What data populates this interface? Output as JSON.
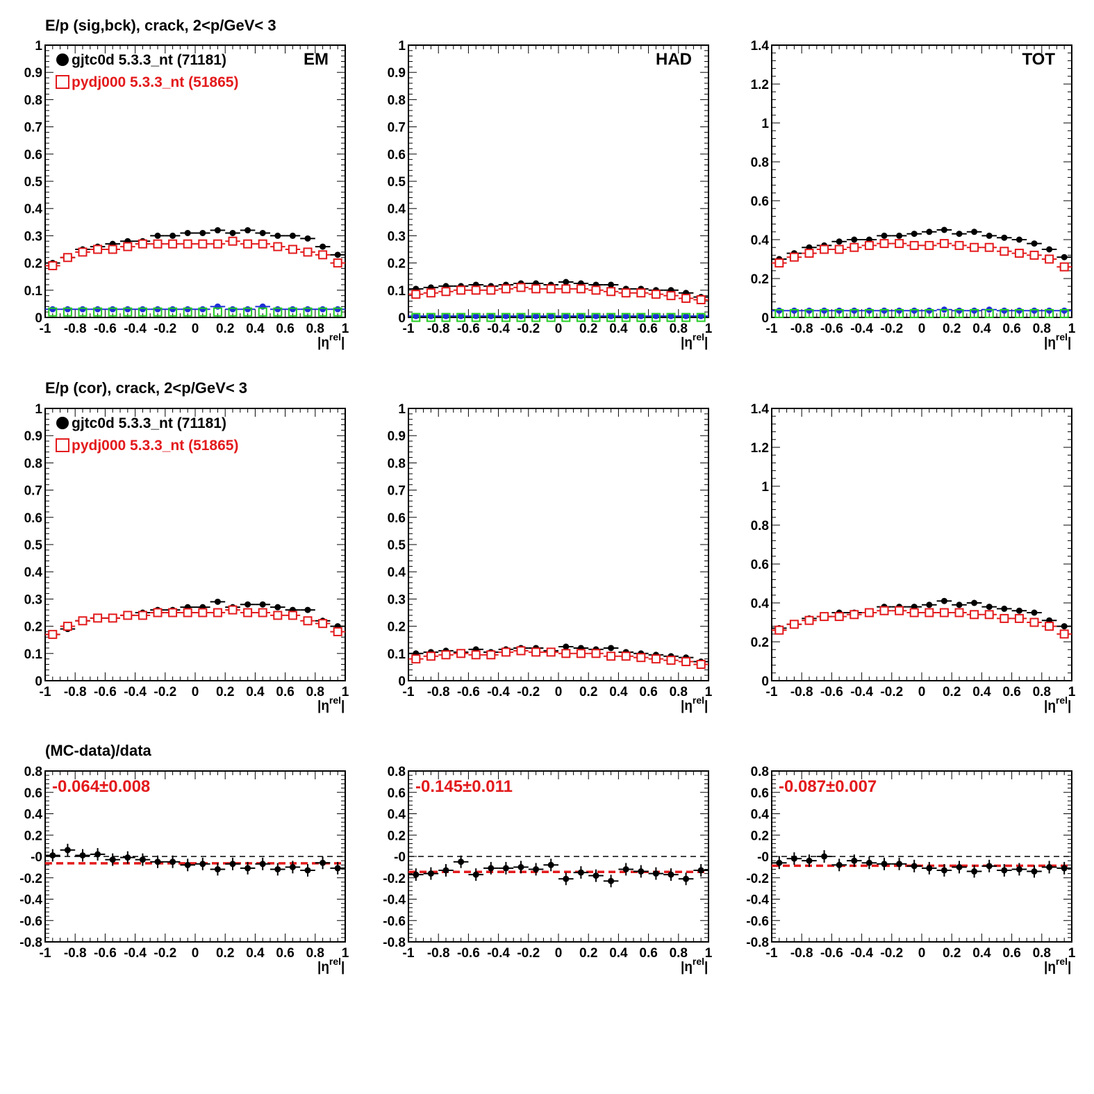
{
  "row_titles": [
    "E/p (sig,bck), crack,  2<p/GeV< 3",
    "E/p (cor), crack,  2<p/GeV< 3",
    "(MC-data)/data"
  ],
  "panel_labels": [
    "EM",
    "HAD",
    "TOT"
  ],
  "legend": {
    "data_label": "gjtc0d 5.3.3_nt (71181)",
    "mc_label": "pydj000 5.3.3_nt (51865)"
  },
  "xlabel_eta": "|η",
  "xlabel_sup": "rel",
  "xlabel_close": "|",
  "colors": {
    "data": "#000000",
    "mc": "#e31a1c",
    "bck_data": "#1f2fd6",
    "bck_mc": "#22cc22",
    "fit": "#e31a1c"
  },
  "chart_data": [
    {
      "type": "scatter",
      "panel": "EM",
      "row": 1,
      "x": [
        -0.95,
        -0.85,
        -0.75,
        -0.65,
        -0.55,
        -0.45,
        -0.35,
        -0.25,
        -0.15,
        -0.05,
        0.05,
        0.15,
        0.25,
        0.35,
        0.45,
        0.55,
        0.65,
        0.75,
        0.85,
        0.95
      ],
      "series": [
        {
          "name": "gjtc0d 5.3.3_nt (71181)",
          "values": [
            0.2,
            0.22,
            0.25,
            0.26,
            0.27,
            0.28,
            0.28,
            0.3,
            0.3,
            0.31,
            0.31,
            0.32,
            0.31,
            0.32,
            0.31,
            0.3,
            0.3,
            0.29,
            0.26,
            0.23
          ]
        },
        {
          "name": "pydj000 5.3.3_nt (51865)",
          "values": [
            0.19,
            0.22,
            0.24,
            0.25,
            0.25,
            0.26,
            0.27,
            0.27,
            0.27,
            0.27,
            0.27,
            0.27,
            0.28,
            0.27,
            0.27,
            0.26,
            0.25,
            0.24,
            0.23,
            0.2
          ]
        },
        {
          "values": [
            0.03,
            0.03,
            0.03,
            0.03,
            0.03,
            0.03,
            0.03,
            0.03,
            0.03,
            0.03,
            0.03,
            0.04,
            0.03,
            0.03,
            0.04,
            0.03,
            0.03,
            0.03,
            0.03,
            0.03
          ]
        },
        {
          "values": [
            0.02,
            0.02,
            0.02,
            0.02,
            0.02,
            0.02,
            0.02,
            0.02,
            0.02,
            0.02,
            0.02,
            0.02,
            0.02,
            0.02,
            0.02,
            0.02,
            0.02,
            0.02,
            0.02,
            0.02
          ]
        }
      ],
      "xlim": [
        -1,
        1
      ],
      "ylim": [
        0,
        1
      ],
      "xticks": [
        "-1",
        "-0.8",
        "-0.6",
        "-0.4",
        "-0.2",
        "0",
        "0.2",
        "0.4",
        "0.6",
        "0.8",
        "1"
      ],
      "yticks": [
        "0",
        "0.1",
        "0.2",
        "0.3",
        "0.4",
        "0.5",
        "0.6",
        "0.7",
        "0.8",
        "0.9",
        "1"
      ]
    },
    {
      "type": "scatter",
      "panel": "HAD",
      "row": 1,
      "x": [
        -0.95,
        -0.85,
        -0.75,
        -0.65,
        -0.55,
        -0.45,
        -0.35,
        -0.25,
        -0.15,
        -0.05,
        0.05,
        0.15,
        0.25,
        0.35,
        0.45,
        0.55,
        0.65,
        0.75,
        0.85,
        0.95
      ],
      "series": [
        {
          "name": "gjtc0d 5.3.3_nt (71181)",
          "values": [
            0.105,
            0.11,
            0.115,
            0.115,
            0.12,
            0.115,
            0.12,
            0.125,
            0.125,
            0.12,
            0.13,
            0.125,
            0.12,
            0.12,
            0.105,
            0.105,
            0.1,
            0.1,
            0.09,
            0.075
          ]
        },
        {
          "name": "pydj000 5.3.3_nt (51865)",
          "values": [
            0.085,
            0.09,
            0.095,
            0.1,
            0.1,
            0.1,
            0.105,
            0.11,
            0.105,
            0.105,
            0.105,
            0.105,
            0.1,
            0.095,
            0.09,
            0.09,
            0.085,
            0.08,
            0.07,
            0.065
          ]
        },
        {
          "values": [
            0.005,
            0.005,
            0.005,
            0.005,
            0.005,
            0.005,
            0.005,
            0.005,
            0.005,
            0.005,
            0.005,
            0.005,
            0.005,
            0.005,
            0.005,
            0.005,
            0.005,
            0.005,
            0.005,
            0.005
          ]
        },
        {
          "values": [
            0.0,
            0.0,
            0.0,
            0.0,
            0.0,
            0.0,
            0.0,
            0.0,
            0.0,
            0.0,
            0.0,
            0.0,
            0.0,
            0.0,
            0.0,
            0.0,
            0.0,
            0.0,
            0.0,
            0.0
          ]
        }
      ],
      "xlim": [
        -1,
        1
      ],
      "ylim": [
        0,
        1
      ],
      "xticks": [
        "-1",
        "-0.8",
        "-0.6",
        "-0.4",
        "-0.2",
        "0",
        "0.2",
        "0.4",
        "0.6",
        "0.8",
        "1"
      ],
      "yticks": [
        "0",
        "0.1",
        "0.2",
        "0.3",
        "0.4",
        "0.5",
        "0.6",
        "0.7",
        "0.8",
        "0.9",
        "1"
      ]
    },
    {
      "type": "scatter",
      "panel": "TOT",
      "row": 1,
      "x": [
        -0.95,
        -0.85,
        -0.75,
        -0.65,
        -0.55,
        -0.45,
        -0.35,
        -0.25,
        -0.15,
        -0.05,
        0.05,
        0.15,
        0.25,
        0.35,
        0.45,
        0.55,
        0.65,
        0.75,
        0.85,
        0.95
      ],
      "series": [
        {
          "name": "gjtc0d 5.3.3_nt (71181)",
          "values": [
            0.3,
            0.33,
            0.36,
            0.37,
            0.39,
            0.4,
            0.4,
            0.42,
            0.42,
            0.43,
            0.44,
            0.45,
            0.43,
            0.44,
            0.42,
            0.41,
            0.4,
            0.38,
            0.35,
            0.31
          ]
        },
        {
          "name": "pydj000 5.3.3_nt (51865)",
          "values": [
            0.28,
            0.31,
            0.33,
            0.35,
            0.35,
            0.36,
            0.37,
            0.38,
            0.38,
            0.37,
            0.37,
            0.38,
            0.37,
            0.36,
            0.36,
            0.34,
            0.33,
            0.32,
            0.3,
            0.26
          ]
        },
        {
          "values": [
            0.035,
            0.035,
            0.035,
            0.035,
            0.035,
            0.035,
            0.035,
            0.035,
            0.035,
            0.035,
            0.035,
            0.04,
            0.035,
            0.035,
            0.04,
            0.035,
            0.035,
            0.035,
            0.035,
            0.035
          ]
        },
        {
          "values": [
            0.02,
            0.02,
            0.02,
            0.02,
            0.02,
            0.02,
            0.02,
            0.02,
            0.02,
            0.02,
            0.02,
            0.02,
            0.02,
            0.02,
            0.02,
            0.02,
            0.02,
            0.02,
            0.02,
            0.02
          ]
        }
      ],
      "xlim": [
        -1,
        1
      ],
      "ylim": [
        0,
        1.4
      ],
      "xticks": [
        "-1",
        "-0.8",
        "-0.6",
        "-0.4",
        "-0.2",
        "0",
        "0.2",
        "0.4",
        "0.6",
        "0.8",
        "1"
      ],
      "yticks": [
        "0",
        "0.2",
        "0.4",
        "0.6",
        "0.8",
        "1",
        "1.2",
        "1.4"
      ]
    },
    {
      "type": "scatter",
      "panel": "EM",
      "row": 2,
      "x": [
        -0.95,
        -0.85,
        -0.75,
        -0.65,
        -0.55,
        -0.45,
        -0.35,
        -0.25,
        -0.15,
        -0.05,
        0.05,
        0.15,
        0.25,
        0.35,
        0.45,
        0.55,
        0.65,
        0.75,
        0.85,
        0.95
      ],
      "series": [
        {
          "name": "gjtc0d 5.3.3_nt (71181)",
          "values": [
            0.17,
            0.19,
            0.22,
            0.23,
            0.23,
            0.24,
            0.25,
            0.26,
            0.26,
            0.27,
            0.27,
            0.29,
            0.27,
            0.28,
            0.28,
            0.27,
            0.26,
            0.26,
            0.22,
            0.2
          ]
        },
        {
          "name": "pydj000 5.3.3_nt (51865)",
          "values": [
            0.17,
            0.2,
            0.22,
            0.23,
            0.23,
            0.24,
            0.24,
            0.25,
            0.25,
            0.25,
            0.25,
            0.25,
            0.26,
            0.25,
            0.25,
            0.24,
            0.24,
            0.22,
            0.21,
            0.18
          ]
        }
      ],
      "xlim": [
        -1,
        1
      ],
      "ylim": [
        0,
        1
      ],
      "xticks": [
        "-1",
        "-0.8",
        "-0.6",
        "-0.4",
        "-0.2",
        "0",
        "0.2",
        "0.4",
        "0.6",
        "0.8",
        "1"
      ],
      "yticks": [
        "0",
        "0.1",
        "0.2",
        "0.3",
        "0.4",
        "0.5",
        "0.6",
        "0.7",
        "0.8",
        "0.9",
        "1"
      ]
    },
    {
      "type": "scatter",
      "panel": "HAD",
      "row": 2,
      "x": [
        -0.95,
        -0.85,
        -0.75,
        -0.65,
        -0.55,
        -0.45,
        -0.35,
        -0.25,
        -0.15,
        -0.05,
        0.05,
        0.15,
        0.25,
        0.35,
        0.45,
        0.55,
        0.65,
        0.75,
        0.85,
        0.95
      ],
      "series": [
        {
          "name": "gjtc0d 5.3.3_nt (71181)",
          "values": [
            0.1,
            0.105,
            0.11,
            0.105,
            0.115,
            0.105,
            0.115,
            0.12,
            0.12,
            0.11,
            0.125,
            0.12,
            0.115,
            0.12,
            0.105,
            0.1,
            0.095,
            0.09,
            0.085,
            0.07
          ]
        },
        {
          "name": "pydj000 5.3.3_nt (51865)",
          "values": [
            0.08,
            0.09,
            0.095,
            0.1,
            0.095,
            0.095,
            0.105,
            0.11,
            0.105,
            0.105,
            0.1,
            0.1,
            0.1,
            0.09,
            0.09,
            0.085,
            0.08,
            0.075,
            0.07,
            0.06
          ]
        }
      ],
      "xlim": [
        -1,
        1
      ],
      "ylim": [
        0,
        1
      ],
      "xticks": [
        "-1",
        "-0.8",
        "-0.6",
        "-0.4",
        "-0.2",
        "0",
        "0.2",
        "0.4",
        "0.6",
        "0.8",
        "1"
      ],
      "yticks": [
        "0",
        "0.1",
        "0.2",
        "0.3",
        "0.4",
        "0.5",
        "0.6",
        "0.7",
        "0.8",
        "0.9",
        "1"
      ]
    },
    {
      "type": "scatter",
      "panel": "TOT",
      "row": 2,
      "x": [
        -0.95,
        -0.85,
        -0.75,
        -0.65,
        -0.55,
        -0.45,
        -0.35,
        -0.25,
        -0.15,
        -0.05,
        0.05,
        0.15,
        0.25,
        0.35,
        0.45,
        0.55,
        0.65,
        0.75,
        0.85,
        0.95
      ],
      "series": [
        {
          "name": "gjtc0d 5.3.3_nt (71181)",
          "values": [
            0.27,
            0.29,
            0.32,
            0.33,
            0.35,
            0.35,
            0.35,
            0.38,
            0.38,
            0.38,
            0.39,
            0.41,
            0.39,
            0.4,
            0.38,
            0.37,
            0.36,
            0.35,
            0.31,
            0.28
          ]
        },
        {
          "name": "pydj000 5.3.3_nt (51865)",
          "values": [
            0.26,
            0.29,
            0.31,
            0.33,
            0.33,
            0.34,
            0.35,
            0.36,
            0.36,
            0.35,
            0.35,
            0.35,
            0.35,
            0.34,
            0.34,
            0.32,
            0.32,
            0.3,
            0.28,
            0.24
          ]
        }
      ],
      "xlim": [
        -1,
        1
      ],
      "ylim": [
        0,
        1.4
      ],
      "xticks": [
        "-1",
        "-0.8",
        "-0.6",
        "-0.4",
        "-0.2",
        "0",
        "0.2",
        "0.4",
        "0.6",
        "0.8",
        "1"
      ],
      "yticks": [
        "0",
        "0.2",
        "0.4",
        "0.6",
        "0.8",
        "1",
        "1.2",
        "1.4"
      ]
    },
    {
      "type": "scatter",
      "panel": "EM",
      "row": 3,
      "x": [
        -0.95,
        -0.85,
        -0.75,
        -0.65,
        -0.55,
        -0.45,
        -0.35,
        -0.25,
        -0.15,
        -0.05,
        0.05,
        0.15,
        0.25,
        0.35,
        0.45,
        0.55,
        0.65,
        0.75,
        0.85,
        0.95
      ],
      "series": [
        {
          "values": [
            0.01,
            0.06,
            0.01,
            0.02,
            -0.03,
            -0.01,
            -0.03,
            -0.05,
            -0.05,
            -0.08,
            -0.07,
            -0.12,
            -0.07,
            -0.11,
            -0.07,
            -0.12,
            -0.1,
            -0.13,
            -0.06,
            -0.11
          ]
        }
      ],
      "fit": {
        "value": -0.064,
        "label": "-0.064±0.008"
      },
      "xlim": [
        -1,
        1
      ],
      "ylim": [
        -0.8,
        0.8
      ],
      "xticks": [
        "-1",
        "-0.8",
        "-0.6",
        "-0.4",
        "-0.2",
        "0",
        "0.2",
        "0.4",
        "0.6",
        "0.8",
        "1"
      ],
      "yticks": [
        "-0.8",
        "-0.6",
        "-0.4",
        "-0.2",
        "-0",
        "0.2",
        "0.4",
        "0.6",
        "0.8"
      ]
    },
    {
      "type": "scatter",
      "panel": "HAD",
      "row": 3,
      "x": [
        -0.95,
        -0.85,
        -0.75,
        -0.65,
        -0.55,
        -0.45,
        -0.35,
        -0.25,
        -0.15,
        -0.05,
        0.05,
        0.15,
        0.25,
        0.35,
        0.45,
        0.55,
        0.65,
        0.75,
        0.85,
        0.95
      ],
      "series": [
        {
          "values": [
            -0.17,
            -0.16,
            -0.13,
            -0.05,
            -0.17,
            -0.11,
            -0.11,
            -0.1,
            -0.12,
            -0.08,
            -0.21,
            -0.15,
            -0.18,
            -0.23,
            -0.12,
            -0.14,
            -0.16,
            -0.17,
            -0.21,
            -0.13
          ]
        }
      ],
      "fit": {
        "value": -0.145,
        "label": "-0.145±0.011"
      },
      "xlim": [
        -1,
        1
      ],
      "ylim": [
        -0.8,
        0.8
      ],
      "xticks": [
        "-1",
        "-0.8",
        "-0.6",
        "-0.4",
        "-0.2",
        "0",
        "0.2",
        "0.4",
        "0.6",
        "0.8",
        "1"
      ],
      "yticks": [
        "-0.8",
        "-0.6",
        "-0.4",
        "-0.2",
        "-0",
        "0.2",
        "0.4",
        "0.6",
        "0.8"
      ]
    },
    {
      "type": "scatter",
      "panel": "TOT",
      "row": 3,
      "x": [
        -0.95,
        -0.85,
        -0.75,
        -0.65,
        -0.55,
        -0.45,
        -0.35,
        -0.25,
        -0.15,
        -0.05,
        0.05,
        0.15,
        0.25,
        0.35,
        0.45,
        0.55,
        0.65,
        0.75,
        0.85,
        0.95
      ],
      "series": [
        {
          "values": [
            -0.06,
            -0.02,
            -0.04,
            0.0,
            -0.08,
            -0.04,
            -0.06,
            -0.07,
            -0.07,
            -0.09,
            -0.11,
            -0.13,
            -0.1,
            -0.14,
            -0.09,
            -0.13,
            -0.12,
            -0.14,
            -0.1,
            -0.11
          ]
        }
      ],
      "fit": {
        "value": -0.087,
        "label": "-0.087±0.007"
      },
      "xlim": [
        -1,
        1
      ],
      "ylim": [
        -0.8,
        0.8
      ],
      "xticks": [
        "-1",
        "-0.8",
        "-0.6",
        "-0.4",
        "-0.2",
        "0",
        "0.2",
        "0.4",
        "0.6",
        "0.8",
        "1"
      ],
      "yticks": [
        "-0.8",
        "-0.6",
        "-0.4",
        "-0.2",
        "-0",
        "0.2",
        "0.4",
        "0.6",
        "0.8"
      ]
    }
  ]
}
